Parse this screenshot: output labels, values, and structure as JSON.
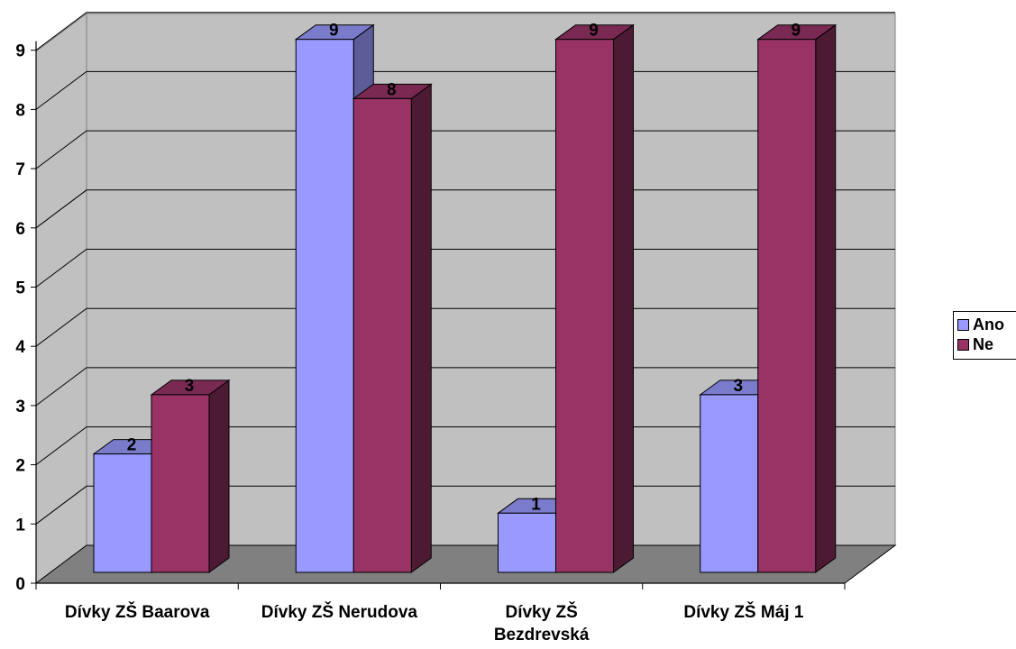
{
  "chart_data": {
    "type": "bar",
    "categories": [
      "Dívky ZŠ Baarova",
      "Dívky ZŠ Nerudova",
      "Dívky ZŠ Bezdrevská",
      "Dívky ZŠ Máj 1"
    ],
    "category_labels": [
      [
        "Dívky ZŠ Baarova"
      ],
      [
        "Dívky ZŠ Nerudova"
      ],
      [
        "Dívky ZŠ",
        "Bezdrevská"
      ],
      [
        "Dívky ZŠ Máj 1"
      ]
    ],
    "series": [
      {
        "name": "Ano",
        "values": [
          2,
          9,
          1,
          3
        ],
        "color": "#9999ff",
        "side_color": "#5c5c99",
        "top_color": "#7b7bcc"
      },
      {
        "name": "Ne",
        "values": [
          3,
          8,
          9,
          9
        ],
        "color": "#993366",
        "side_color": "#4d1a33",
        "top_color": "#7a2952"
      }
    ],
    "yticks": [
      0,
      1,
      2,
      3,
      4,
      5,
      6,
      7,
      8,
      9
    ],
    "ylim": [
      0,
      9
    ],
    "grid": true,
    "legend_position": "right",
    "wall_color": "#c0c0c0",
    "floor_color": "#808080"
  },
  "legend": [
    {
      "label": "Ano",
      "color": "#9999ff"
    },
    {
      "label": "Ne",
      "color": "#993366"
    }
  ]
}
